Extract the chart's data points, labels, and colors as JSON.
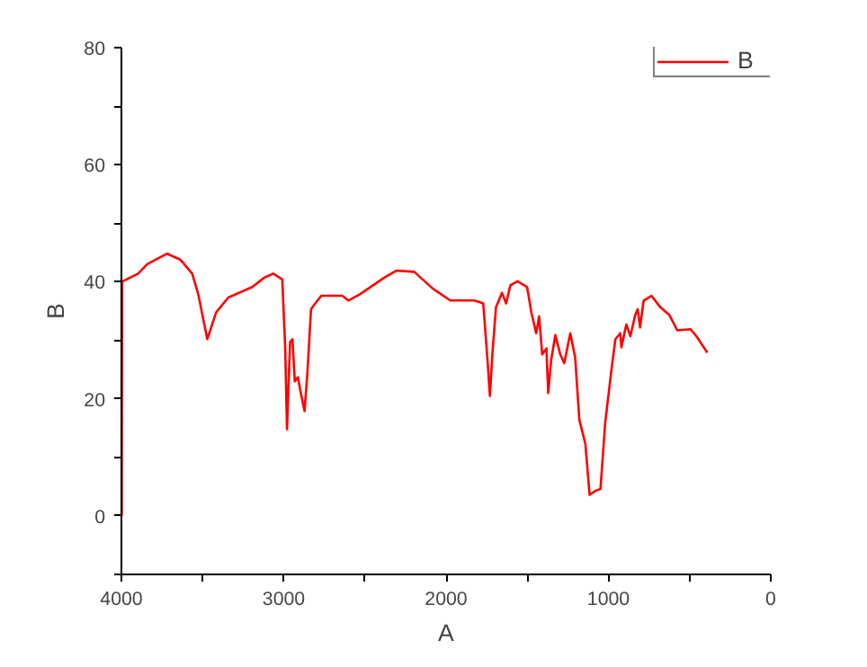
{
  "chart_data": {
    "type": "line",
    "xlabel": "A",
    "ylabel": "B",
    "xlim": [
      4000,
      0
    ],
    "ylim": [
      -10,
      80
    ],
    "xticks": [
      4000,
      {
        "value": 3500,
        "label": null
      },
      3000,
      {
        "value": 2500,
        "label": null
      },
      2000,
      {
        "value": 1500,
        "label": null
      },
      1000,
      {
        "value": 500,
        "label": null
      },
      0
    ],
    "yticks": [
      {
        "value": -10,
        "label": null
      },
      0,
      {
        "value": 10,
        "label": null
      },
      20,
      {
        "value": 30,
        "label": null
      },
      40,
      {
        "value": 50,
        "label": null
      },
      60,
      {
        "value": 70,
        "label": null
      },
      80
    ],
    "grid": false,
    "legend": "top right",
    "line_style": "solid",
    "marker": "none",
    "series": [
      {
        "name": "B",
        "color": "#ff0000",
        "x": [
          3998,
          3996,
          3897,
          3841,
          3719,
          3638,
          3564,
          3527,
          3471,
          3416,
          3342,
          3194,
          3120,
          3065,
          3009,
          2991,
          2980,
          2961,
          2946,
          2932,
          2913,
          2895,
          2872,
          2854,
          2832,
          2806,
          2769,
          2640,
          2602,
          2529,
          2381,
          2307,
          2196,
          2085,
          1974,
          1826,
          1771,
          1745,
          1730,
          1715,
          1693,
          1656,
          1630,
          1604,
          1560,
          1501,
          1475,
          1445,
          1427,
          1408,
          1382,
          1371,
          1353,
          1327,
          1297,
          1272,
          1235,
          1205,
          1179,
          1142,
          1116,
          1079,
          1049,
          1020,
          983,
          957,
          927,
          920,
          890,
          865,
          835,
          820,
          805,
          783,
          735,
          679,
          624,
          576,
          495,
          458,
          391
        ],
        "values": [
          0,
          40,
          41.4,
          43,
          44.8,
          43.8,
          41.4,
          37.9,
          30.2,
          34.8,
          37.3,
          39.1,
          40.7,
          41.4,
          40.4,
          28.6,
          14.8,
          29.7,
          30.2,
          23,
          23.7,
          21,
          17.9,
          24.6,
          35.3,
          36.3,
          37.6,
          37.6,
          36.8,
          37.9,
          40.7,
          41.9,
          41.7,
          38.9,
          36.8,
          36.8,
          36.3,
          26.6,
          20.5,
          27.6,
          35.6,
          38.1,
          36.3,
          39.4,
          40.1,
          39.1,
          34.8,
          31.2,
          34.1,
          27.6,
          28.6,
          21,
          26.6,
          30.9,
          27.6,
          26.1,
          31.2,
          27.1,
          16.4,
          12.3,
          3.6,
          4.3,
          4.6,
          15.9,
          24.6,
          30.2,
          31.2,
          28.8,
          32.7,
          30.7,
          34.3,
          35.3,
          32.2,
          36.8,
          37.6,
          35.6,
          34.3,
          31.7,
          31.9,
          30.7,
          27.9
        ]
      }
    ]
  }
}
